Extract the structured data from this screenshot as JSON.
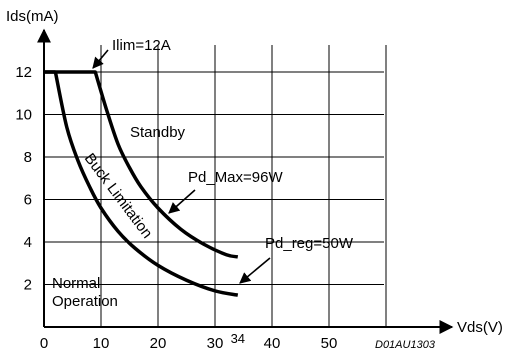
{
  "chart_data": {
    "type": "line",
    "ylabel": "Ids(mA)",
    "xlabel": "Vds(V)",
    "xlim": [
      0,
      70
    ],
    "ylim": [
      0,
      14
    ],
    "grid": true,
    "x_ticks": [
      "0",
      "10",
      "20",
      "30",
      "40",
      "50"
    ],
    "y_ticks": [
      "2",
      "4",
      "6",
      "8",
      "10",
      "12"
    ],
    "extra_x_tick": "34",
    "figure_code": "D01AU1303",
    "series": [
      {
        "name": "Pd_Max=96W",
        "x": [
          0,
          9,
          11,
          13,
          15,
          17,
          20,
          24,
          28,
          32,
          34
        ],
        "y": [
          12,
          12,
          10.2,
          8.6,
          7.5,
          6.6,
          5.6,
          4.6,
          3.9,
          3.4,
          3.3
        ]
      },
      {
        "name": "Pd_reg=50W",
        "x": [
          2,
          4,
          6,
          8,
          10,
          13,
          16,
          20,
          25,
          30,
          34
        ],
        "y": [
          12,
          9.4,
          7.8,
          6.6,
          5.6,
          4.5,
          3.7,
          2.9,
          2.2,
          1.7,
          1.5
        ]
      }
    ],
    "annotations": {
      "ilim": "Ilim=12A",
      "standby": "Standby",
      "buck": "Buck Limitation",
      "pd_max": "Pd_Max=96W",
      "pd_reg": "Pd_reg=50W",
      "normal_line1": "Normal",
      "normal_line2": "Operation"
    }
  }
}
